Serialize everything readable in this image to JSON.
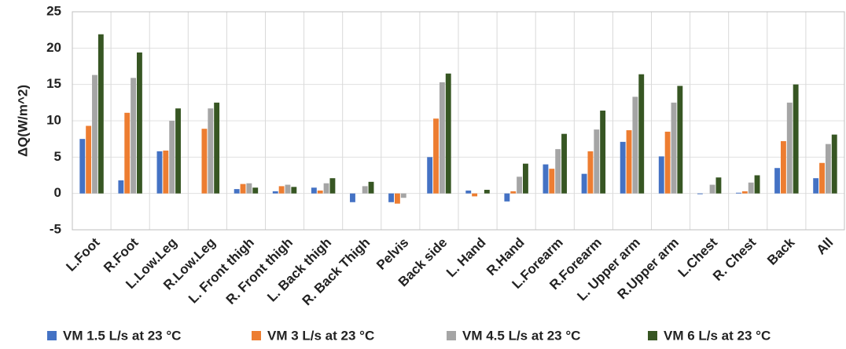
{
  "chart_data": {
    "type": "bar",
    "y_label": "ΔQ(W/m^2)",
    "categories": [
      "L.Foot",
      "R.Foot",
      "L.Low.Leg",
      "R.Low.Leg",
      "L. Front thigh",
      "R. Front thigh",
      "L. Back thigh",
      "R. Back Thigh",
      "Pelvis",
      "Back side",
      "L. Hand",
      "R.Hand",
      "L.Forearm",
      "R.Forearm",
      "L. Upper arm",
      "R.Upper arm",
      "L.Chest",
      "R. Chest",
      "Back",
      "All"
    ],
    "series": [
      {
        "name": "VM 1.5 L/s at 23 °C",
        "color": "#4472c4",
        "values": [
          7.5,
          1.8,
          5.8,
          0,
          0.6,
          0.3,
          0.8,
          -1.2,
          -1.2,
          5.0,
          0.4,
          -1.1,
          4.0,
          2.7,
          7.1,
          5.1,
          -0.1,
          0.1,
          3.5,
          2.1
        ]
      },
      {
        "name": "VM 3 L/s at 23 °C",
        "color": "#ed7d31",
        "values": [
          9.3,
          11.1,
          5.9,
          8.9,
          1.3,
          1.0,
          0.4,
          0,
          -1.4,
          10.3,
          -0.4,
          0.3,
          3.4,
          5.8,
          8.7,
          8.5,
          0,
          0.3,
          7.2,
          4.2
        ]
      },
      {
        "name": "VM 4.5 L/s at 23 °C",
        "color": "#a5a5a5",
        "values": [
          16.3,
          15.9,
          10.0,
          11.7,
          1.4,
          1.2,
          1.4,
          1.0,
          -0.6,
          15.3,
          0,
          2.3,
          6.1,
          8.8,
          13.3,
          12.5,
          1.2,
          1.5,
          12.5,
          6.8
        ]
      },
      {
        "name": "VM 6 L/s at 23 °C",
        "color": "#375623",
        "values": [
          21.9,
          19.4,
          11.7,
          12.5,
          0.8,
          0.9,
          2.1,
          1.6,
          0,
          16.5,
          0.5,
          4.1,
          8.2,
          11.4,
          16.4,
          14.8,
          2.2,
          2.5,
          15.0,
          8.1
        ]
      }
    ],
    "ylim": [
      -5,
      25
    ],
    "yticks": [
      -5,
      0,
      5,
      10,
      15,
      20,
      25
    ],
    "grid": true,
    "legend": "bottom"
  }
}
